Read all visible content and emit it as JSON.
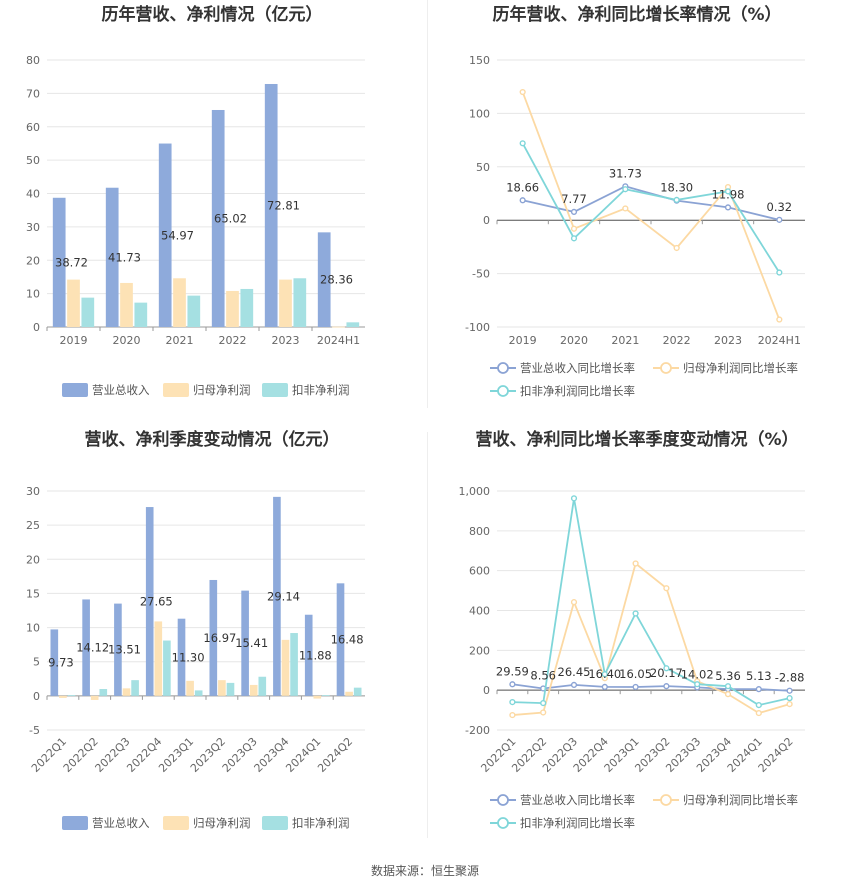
{
  "source_text": "数据来源：恒生聚源",
  "colors": {
    "c1": "#8eaadb",
    "c2": "#fde2b5",
    "c3": "#a5e0e2",
    "grid": "#e6e6e6",
    "axis": "#999999",
    "line1": "#8ba3d4",
    "line2": "#fcd9a3",
    "line3": "#7fd6d9"
  },
  "chart_data": [
    {
      "type": "bar",
      "title": "历年营收、净利情况（亿元）",
      "categories": [
        "2019",
        "2020",
        "2021",
        "2022",
        "2023",
        "2024H1"
      ],
      "ylim": [
        0,
        80
      ],
      "yticks": [
        "0",
        "10",
        "20",
        "30",
        "40",
        "50",
        "60",
        "70",
        "80"
      ],
      "ytick_values": [
        0,
        10,
        20,
        30,
        40,
        50,
        60,
        70,
        80
      ],
      "series": [
        {
          "name": "营业总收入",
          "values": [
            38.72,
            41.73,
            54.97,
            65.02,
            72.81,
            28.36
          ],
          "labels": [
            "38.72",
            "41.73",
            "54.97",
            "65.02",
            "72.81",
            "28.36"
          ]
        },
        {
          "name": "归母净利润",
          "values": [
            14.2,
            13.2,
            14.6,
            10.8,
            14.2,
            0.1
          ]
        },
        {
          "name": "扣非净利润",
          "values": [
            8.8,
            7.3,
            9.4,
            11.4,
            14.6,
            1.4
          ]
        }
      ],
      "legend_position": "bottom"
    },
    {
      "type": "line",
      "title": "历年营收、净利同比增长率情况（%）",
      "categories": [
        "2019",
        "2020",
        "2021",
        "2022",
        "2023",
        "2024H1"
      ],
      "ylim": [
        -100,
        150
      ],
      "yticks": [
        "-100",
        "-50",
        "0",
        "50",
        "100",
        "150"
      ],
      "ytick_values": [
        -100,
        -50,
        0,
        50,
        100,
        150
      ],
      "series": [
        {
          "name": "营业总收入同比增长率",
          "values": [
            18.66,
            7.77,
            31.73,
            18.3,
            11.98,
            0.32
          ],
          "labels": [
            "18.66",
            "7.77",
            "31.73",
            "18.30",
            "11.98",
            "0.32"
          ]
        },
        {
          "name": "归母净利润同比增长率",
          "values": [
            120,
            -8,
            11,
            -26,
            31,
            -93
          ]
        },
        {
          "name": "扣非净利润同比增长率",
          "values": [
            72,
            -17,
            29,
            19,
            27,
            -49
          ]
        }
      ],
      "legend_position": "bottom"
    },
    {
      "type": "bar",
      "title": "营收、净利季度变动情况（亿元）",
      "categories": [
        "2022Q1",
        "2022Q2",
        "2022Q3",
        "2022Q4",
        "2023Q1",
        "2023Q2",
        "2023Q3",
        "2023Q4",
        "2024Q1",
        "2024Q2"
      ],
      "ylim": [
        -5,
        30
      ],
      "yticks": [
        "-5",
        "0",
        "5",
        "10",
        "15",
        "20",
        "25",
        "30"
      ],
      "ytick_values": [
        -5,
        0,
        5,
        10,
        15,
        20,
        25,
        30
      ],
      "series": [
        {
          "name": "营业总收入",
          "values": [
            9.73,
            14.12,
            13.51,
            27.65,
            11.3,
            16.97,
            15.41,
            29.14,
            11.88,
            16.48
          ],
          "labels": [
            "9.73",
            "14.12",
            "13.51",
            "27.65",
            "11.30",
            "16.97",
            "15.41",
            "29.14",
            "11.88",
            "16.48"
          ]
        },
        {
          "name": "归母净利润",
          "values": [
            -0.3,
            -0.6,
            1.1,
            10.9,
            2.2,
            2.3,
            1.6,
            8.2,
            -0.4,
            0.6
          ]
        },
        {
          "name": "扣非净利润",
          "values": [
            0.1,
            1.0,
            2.3,
            8.1,
            0.8,
            1.9,
            2.8,
            9.2,
            0.1,
            1.2
          ]
        }
      ],
      "legend_position": "bottom"
    },
    {
      "type": "line",
      "title": "营收、净利同比增长率季度变动情况（%）",
      "categories": [
        "2022Q1",
        "2022Q2",
        "2022Q3",
        "2022Q4",
        "2023Q1",
        "2023Q2",
        "2023Q3",
        "2023Q4",
        "2024Q1",
        "2024Q2"
      ],
      "ylim": [
        -200,
        1000
      ],
      "yticks": [
        "-200",
        "0",
        "200",
        "400",
        "600",
        "800",
        "1,000"
      ],
      "ytick_values": [
        -200,
        0,
        200,
        400,
        600,
        800,
        1000
      ],
      "series": [
        {
          "name": "营业总收入同比增长率",
          "values": [
            29.59,
            8.56,
            26.45,
            16.4,
            16.05,
            20.17,
            14.02,
            5.36,
            5.13,
            -2.88
          ],
          "labels": [
            "29.59",
            "8.56",
            "26.45",
            "16.40",
            "16.05",
            "20.17",
            "14.02",
            "5.36",
            "5.13",
            "-2.88"
          ]
        },
        {
          "name": "归母净利润同比增长率",
          "values": [
            -125,
            -112,
            442,
            60,
            636,
            512,
            45,
            -20,
            -115,
            -70
          ]
        },
        {
          "name": "扣非净利润同比增长率",
          "values": [
            -60,
            -65,
            963,
            80,
            385,
            110,
            30,
            20,
            -75,
            -40
          ]
        }
      ],
      "legend_position": "bottom"
    }
  ]
}
